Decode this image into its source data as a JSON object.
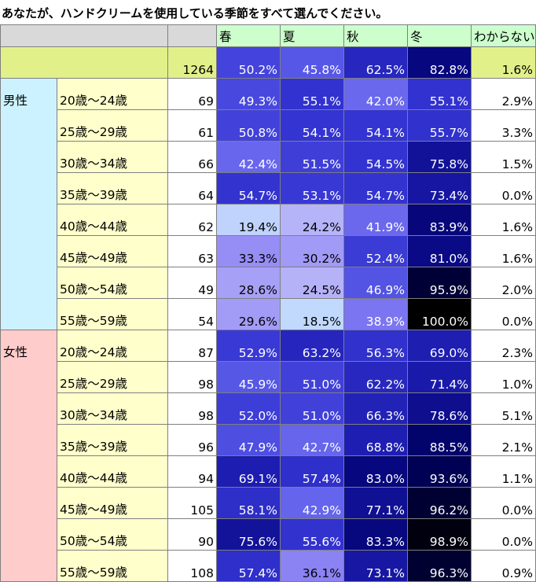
{
  "title": "あなたが、ハンドクリームを使用している季節をすべて選んでください。",
  "colors": {
    "header_gray": "#d9d9d9",
    "header_green": "#ccffcc",
    "total_row_bg": "#e2f08a",
    "male_bg": "#ccf2ff",
    "female_bg": "#ffcccc",
    "age_bg": "#ffffcc"
  },
  "chart_data": {
    "type": "table",
    "title": "あなたが、ハンドクリームを使用している季節をすべて選んでください。",
    "columns": [
      "春",
      "夏",
      "秋",
      "冬",
      "わからない"
    ],
    "total": {
      "n": 1264,
      "values": [
        "50.2%",
        "45.8%",
        "62.5%",
        "82.8%",
        "1.6%"
      ]
    },
    "groups": [
      {
        "name": "男性",
        "rows": [
          {
            "age": "20歳～24歳",
            "n": 69,
            "values": [
              "49.3%",
              "55.1%",
              "42.0%",
              "55.1%",
              "2.9%"
            ]
          },
          {
            "age": "25歳～29歳",
            "n": 61,
            "values": [
              "50.8%",
              "54.1%",
              "54.1%",
              "55.7%",
              "3.3%"
            ]
          },
          {
            "age": "30歳～34歳",
            "n": 66,
            "values": [
              "42.4%",
              "51.5%",
              "54.5%",
              "75.8%",
              "1.5%"
            ]
          },
          {
            "age": "35歳～39歳",
            "n": 64,
            "values": [
              "54.7%",
              "53.1%",
              "54.7%",
              "73.4%",
              "0.0%"
            ]
          },
          {
            "age": "40歳～44歳",
            "n": 62,
            "values": [
              "19.4%",
              "24.2%",
              "41.9%",
              "83.9%",
              "1.6%"
            ]
          },
          {
            "age": "45歳～49歳",
            "n": 63,
            "values": [
              "33.3%",
              "30.2%",
              "52.4%",
              "81.0%",
              "1.6%"
            ]
          },
          {
            "age": "50歳～54歳",
            "n": 49,
            "values": [
              "28.6%",
              "24.5%",
              "46.9%",
              "95.9%",
              "2.0%"
            ]
          },
          {
            "age": "55歳～59歳",
            "n": 54,
            "values": [
              "29.6%",
              "18.5%",
              "38.9%",
              "100.0%",
              "0.0%"
            ]
          }
        ]
      },
      {
        "name": "女性",
        "rows": [
          {
            "age": "20歳～24歳",
            "n": 87,
            "values": [
              "52.9%",
              "63.2%",
              "56.3%",
              "69.0%",
              "2.3%"
            ]
          },
          {
            "age": "25歳～29歳",
            "n": 98,
            "values": [
              "45.9%",
              "51.0%",
              "62.2%",
              "71.4%",
              "1.0%"
            ]
          },
          {
            "age": "30歳～34歳",
            "n": 98,
            "values": [
              "52.0%",
              "51.0%",
              "66.3%",
              "78.6%",
              "5.1%"
            ]
          },
          {
            "age": "35歳～39歳",
            "n": 96,
            "values": [
              "47.9%",
              "42.7%",
              "68.8%",
              "88.5%",
              "2.1%"
            ]
          },
          {
            "age": "40歳～44歳",
            "n": 94,
            "values": [
              "69.1%",
              "57.4%",
              "83.0%",
              "93.6%",
              "1.1%"
            ]
          },
          {
            "age": "45歳～49歳",
            "n": 105,
            "values": [
              "58.1%",
              "42.9%",
              "77.1%",
              "96.2%",
              "0.0%"
            ]
          },
          {
            "age": "50歳～54歳",
            "n": 90,
            "values": [
              "75.6%",
              "55.6%",
              "83.3%",
              "98.9%",
              "0.0%"
            ]
          },
          {
            "age": "55歳～59歳",
            "n": 108,
            "values": [
              "57.4%",
              "36.1%",
              "73.1%",
              "96.3%",
              "0.9%"
            ]
          }
        ]
      }
    ]
  }
}
